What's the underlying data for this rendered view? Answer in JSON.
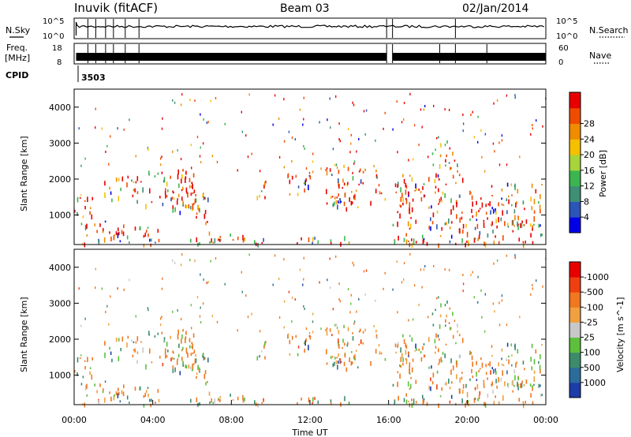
{
  "header": {
    "station": "Inuvik (fitACF)",
    "beam": "Beam 03",
    "date": "02/Jan/2014"
  },
  "top_panel": {
    "left_label": "N.Sky",
    "left_ticks": [
      "10^5",
      "10^0"
    ],
    "right_ticks": [
      "10^5",
      "10^0"
    ],
    "right_label": "N.Search",
    "right_legend_style": "dotted"
  },
  "freq_panel": {
    "left_label_1": "Freq.",
    "left_label_2": "[MHz]",
    "left_ticks": [
      "18",
      "8"
    ],
    "right_ticks": [
      "60",
      "0"
    ],
    "right_label": "Nave",
    "right_legend_style": "dotted"
  },
  "cpid": {
    "label": "CPID",
    "value": "3503"
  },
  "chart_data": [
    {
      "type": "heatmap",
      "name": "power",
      "ylabel": "Slant Range [km]",
      "yticks": [
        1000,
        2000,
        3000,
        4000
      ],
      "ylim": [
        180,
        4500
      ],
      "xlim_hours": [
        0,
        24
      ],
      "data_gap_hours": [
        15.95,
        16.15
      ],
      "colorbar": {
        "label": "Power [dB]",
        "ticks": [
          "4",
          "8",
          "12",
          "16",
          "20",
          "24",
          "28"
        ],
        "colors": [
          "#0000e8",
          "#2c55b8",
          "#3e8f75",
          "#3cb550",
          "#a6d43a",
          "#f4c000",
          "#f08c00",
          "#f04c00",
          "#e80000"
        ]
      }
    },
    {
      "type": "heatmap",
      "name": "velocity",
      "ylabel": "Slant Range [km]",
      "yticks": [
        1000,
        2000,
        3000,
        4000
      ],
      "ylim": [
        180,
        4500
      ],
      "xlim_hours": [
        0,
        24
      ],
      "data_gap_hours": [
        15.95,
        16.15
      ],
      "colorbar": {
        "label": "Velocity [m s^-1]",
        "ticks": [
          "1000",
          "500",
          "100",
          "25",
          "-25",
          "-100",
          "-500",
          "-1000"
        ],
        "colors": [
          "#1c3ca8",
          "#2c6c9c",
          "#3c8c6c",
          "#5cc03c",
          "#c8c8c8",
          "#f0a040",
          "#f07820",
          "#f04010",
          "#e80000"
        ]
      }
    }
  ],
  "x_axis": {
    "ticks": [
      "00:00",
      "04:00",
      "08:00",
      "12:00",
      "16:00",
      "20:00",
      "00:00"
    ],
    "label": "Time UT"
  }
}
